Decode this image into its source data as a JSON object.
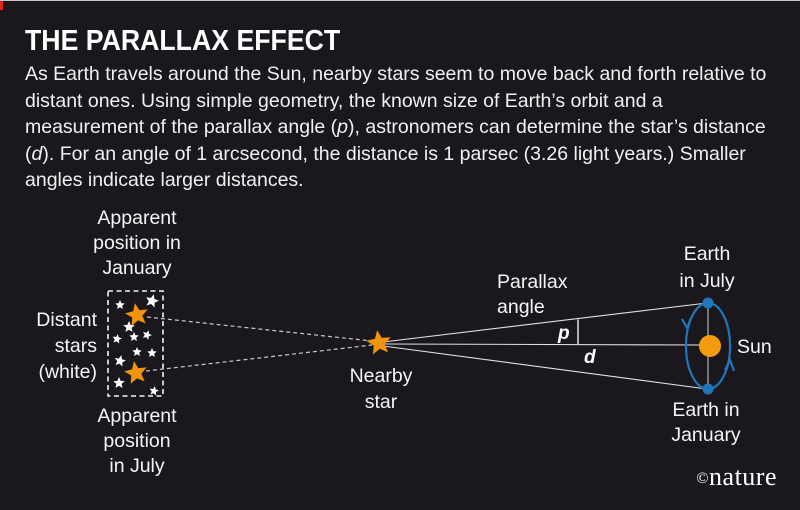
{
  "header": {
    "title": "THE PARALLAX EFFECT"
  },
  "body": {
    "paragraph": [
      {
        "t": "As Earth travels around the Sun, nearby stars seem to move back and forth relative to distant ones. Using simple geometry, the known size of Earth’s orbit and a measurement of the parallax angle (",
        "i": false
      },
      {
        "t": "p",
        "i": true
      },
      {
        "t": "), astronomers can determine the star’s distance (",
        "i": false
      },
      {
        "t": "d",
        "i": true
      },
      {
        "t": "). For an angle of 1 arcsecond, the distance is 1 parsec (3.26 light years.) Smaller angles indicate larger distances.",
        "i": false
      }
    ]
  },
  "diagram": {
    "labels": {
      "apparent_january": "Apparent\nposition in\nJanuary",
      "distant_stars": "Distant\nstars\n(white)",
      "apparent_july": "Apparent\nposition\nin July",
      "nearby_star": "Nearby\nstar",
      "parallax_angle": "Parallax\nangle",
      "p": "p",
      "d": "d",
      "earth_july": "Earth\nin July",
      "sun": "Sun",
      "earth_january": "Earth in\nJanuary"
    },
    "colors": {
      "background": "#1b181d",
      "accent_red": "#e2231c",
      "star_orange": "#f0930f",
      "star_white": "#ffffff",
      "sun_orange": "#f49c0d",
      "orbit_blue": "#2176bc",
      "line_gray": "#dcdcdc"
    }
  },
  "footer": {
    "credit_symbol": "©",
    "credit_name": "nature"
  }
}
